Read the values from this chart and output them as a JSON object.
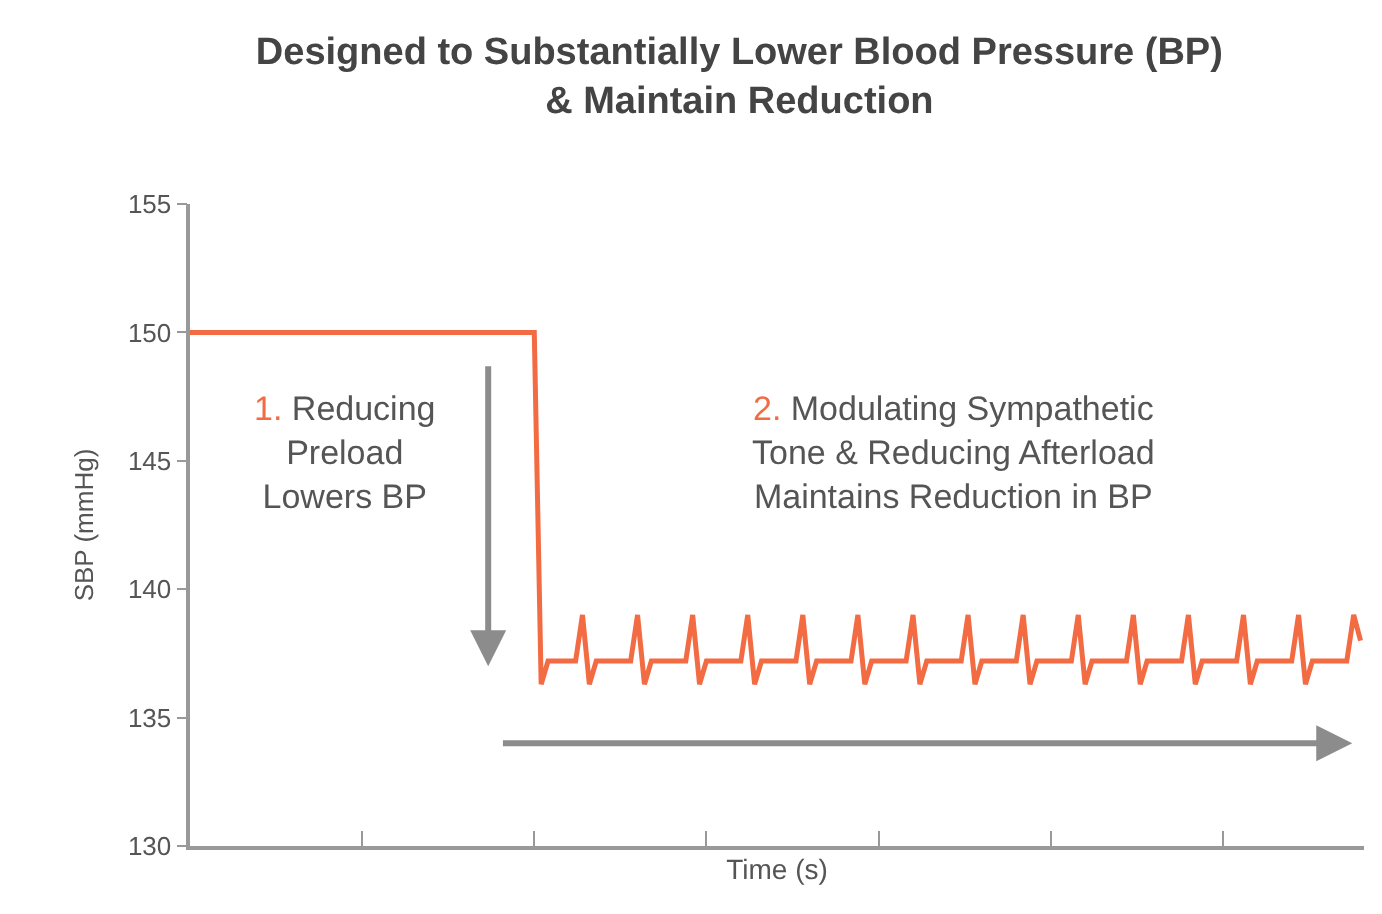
{
  "chart_data": {
    "type": "line",
    "title": "Designed to Substantially Lower Blood Pressure (BP)\n& Maintain Reduction",
    "xlabel": "Time (s)",
    "ylabel": "SBP (mmHg)",
    "annotations": [
      "1. Reducing\nPreload\nLowers BP",
      "2. Modulating Sympathetic\nTone & Reducing Afterload\nMaintains Reduction in BP"
    ],
    "categories": [
      null,
      null,
      null,
      null,
      null,
      null,
      null,
      null,
      null,
      null,
      null,
      null,
      null,
      null,
      null,
      null,
      null,
      null,
      null,
      null,
      null,
      null,
      null,
      null,
      null,
      null,
      null,
      null,
      null,
      null,
      null,
      null,
      null,
      null,
      null,
      null,
      null,
      null,
      null,
      null,
      null,
      null,
      null,
      null,
      null,
      null,
      null,
      null,
      null,
      null,
      null,
      null,
      null,
      null,
      null,
      null,
      null,
      null,
      null,
      null,
      null,
      null,
      null,
      null,
      null,
      null,
      null,
      null,
      null,
      null,
      null,
      null,
      null,
      null,
      null,
      null,
      null,
      null,
      null,
      null,
      null,
      null,
      null,
      null,
      null,
      null,
      null,
      null,
      null,
      null,
      null,
      null,
      null,
      null,
      null,
      null,
      null,
      null,
      null,
      null,
      null,
      null,
      null,
      null,
      null,
      null,
      null,
      null,
      null,
      null,
      null,
      null,
      null,
      null,
      null,
      null,
      null,
      null,
      null,
      null,
      null,
      null,
      null,
      null,
      null,
      null,
      null,
      null,
      null,
      null,
      null,
      null,
      null,
      null,
      null,
      null,
      null,
      null,
      null,
      null,
      null,
      null,
      null,
      null,
      null,
      null,
      null,
      null,
      null,
      null,
      null,
      null,
      null,
      null,
      null,
      null,
      null,
      null,
      null,
      null,
      null,
      null,
      null,
      null,
      null,
      null,
      null,
      null,
      null,
      null,
      null
    ],
    "ylim": [
      130,
      155
    ],
    "yticks": [
      130,
      135,
      140,
      145,
      150,
      155
    ],
    "tick_labels": "y",
    "marker": "none",
    "line_style": "solid",
    "series": [
      {
        "color": "#f26b43",
        "values": [
          150,
          150,
          150,
          150,
          150,
          150,
          150,
          150,
          150,
          150,
          150,
          150,
          150,
          150,
          150,
          150,
          150,
          150,
          150,
          150,
          150,
          150,
          150,
          150,
          150,
          150,
          150,
          150,
          150,
          150,
          150,
          150,
          150,
          150,
          150,
          150,
          150,
          150,
          150,
          150,
          150,
          150,
          150,
          150,
          150,
          150,
          150,
          150,
          150,
          150,
          150,
          136.3,
          137.2,
          137.2,
          137.2,
          137.2,
          137.2,
          139,
          136.3,
          137.2,
          137.2,
          137.2,
          137.2,
          137.2,
          137.2,
          139,
          136.3,
          137.2,
          137.2,
          137.2,
          137.2,
          137.2,
          137.2,
          139,
          136.3,
          137.2,
          137.2,
          137.2,
          137.2,
          137.2,
          137.2,
          139,
          136.3,
          137.2,
          137.2,
          137.2,
          137.2,
          137.2,
          137.2,
          139,
          136.3,
          137.2,
          137.2,
          137.2,
          137.2,
          137.2,
          137.2,
          139,
          136.3,
          137.2,
          137.2,
          137.2,
          137.2,
          137.2,
          137.2,
          139,
          136.3,
          137.2,
          137.2,
          137.2,
          137.2,
          137.2,
          137.2,
          139,
          136.3,
          137.2,
          137.2,
          137.2,
          137.2,
          137.2,
          137.2,
          139,
          136.3,
          137.2,
          137.2,
          137.2,
          137.2,
          137.2,
          137.2,
          139,
          136.3,
          137.2,
          137.2,
          137.2,
          137.2,
          137.2,
          137.2,
          139,
          136.3,
          137.2,
          137.2,
          137.2,
          137.2,
          137.2,
          137.2,
          139,
          136.3,
          137.2,
          137.2,
          137.2,
          137.2,
          137.2,
          137.2,
          139,
          136.3,
          137.2,
          137.2,
          137.2,
          137.2,
          137.2,
          137.2,
          139,
          136.3,
          137.2,
          137.2,
          137.2,
          137.2,
          137.2,
          137.2,
          139,
          138
        ]
      }
    ]
  }
}
